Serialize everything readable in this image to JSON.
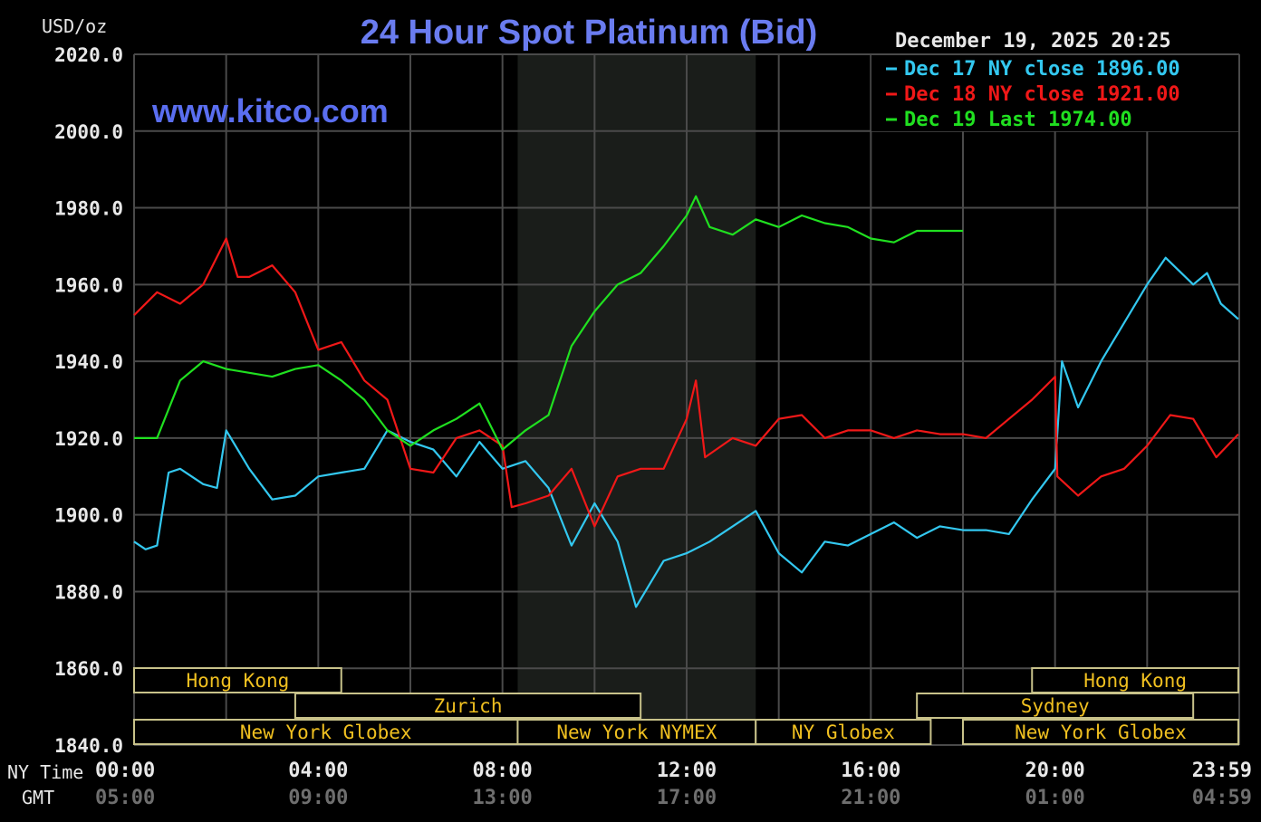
{
  "chart_data": {
    "type": "line",
    "title": "24 Hour Spot Platinum (Bid)",
    "watermark": "www.kitco.com",
    "timestamp": "December 19, 2025 20:25",
    "ylabel": "USD/oz",
    "ylim": [
      1840,
      2020
    ],
    "yticks": [
      "2020.0",
      "2000.0",
      "1980.0",
      "1960.0",
      "1940.0",
      "1920.0",
      "1900.0",
      "1880.0",
      "1860.0",
      "1840.0"
    ],
    "xlim_hours": [
      0,
      24
    ],
    "x_row_label": "NY Time",
    "x2_row_label": "GMT",
    "xticks": [
      {
        "h": 0,
        "ny": "00:00",
        "gmt": "05:00"
      },
      {
        "h": 4,
        "ny": "04:00",
        "gmt": "09:00"
      },
      {
        "h": 8,
        "ny": "08:00",
        "gmt": "13:00"
      },
      {
        "h": 12,
        "ny": "12:00",
        "gmt": "17:00"
      },
      {
        "h": 16,
        "ny": "16:00",
        "gmt": "21:00"
      },
      {
        "h": 20,
        "ny": "20:00",
        "gmt": "01:00"
      },
      {
        "h": 23.98,
        "ny": "23:59",
        "gmt": "04:59"
      }
    ],
    "grid": true,
    "legend_position": "top-right",
    "shaded_period_hours": [
      8.33,
      13.5
    ],
    "colors": {
      "background": "#000000",
      "grid": "#4a4a4a",
      "shade": "#1a1d1a",
      "title": "#6a7cf0",
      "session_border": "#c8c28a",
      "session_text": "#f0c020",
      "axis_text": "#e8e8e8",
      "gmt_text": "#6e6e6e"
    },
    "series": [
      {
        "name": "Dec 17 NY close",
        "value_label": "1896.00",
        "color": "#33c8f0",
        "x": [
          0,
          0.25,
          0.5,
          0.75,
          1,
          1.5,
          1.8,
          2,
          2.5,
          3,
          3.5,
          4,
          4.5,
          5,
          5.5,
          6,
          6.5,
          7,
          7.5,
          8,
          8.5,
          9,
          9.5,
          10,
          10.5,
          10.9,
          11.5,
          12,
          12.5,
          13,
          13.5,
          14,
          14.5,
          15,
          15.5,
          16,
          16.5,
          17,
          17.5,
          18,
          18.5,
          19,
          19.5,
          20,
          20.15,
          20.5,
          21,
          21.5,
          22,
          22.4,
          23,
          23.3,
          23.6,
          23.98
        ],
        "y": [
          1893,
          1891,
          1892,
          1911,
          1912,
          1908,
          1907,
          1922,
          1912,
          1904,
          1905,
          1910,
          1911,
          1912,
          1922,
          1919,
          1917,
          1910,
          1919,
          1912,
          1914,
          1907,
          1892,
          1903,
          1893,
          1876,
          1888,
          1890,
          1893,
          1897,
          1901,
          1890,
          1885,
          1893,
          1892,
          1895,
          1898,
          1894,
          1897,
          1896,
          1896,
          1895,
          1904,
          1912,
          1940,
          1928,
          1940,
          1950,
          1960,
          1967,
          1960,
          1963,
          1955,
          1951
        ]
      },
      {
        "name": "Dec 18 NY close",
        "value_label": "1921.00",
        "color": "#f01818",
        "x": [
          0,
          0.5,
          1,
          1.5,
          2,
          2.25,
          2.5,
          3,
          3.5,
          4,
          4.5,
          5,
          5.5,
          6,
          6.5,
          7,
          7.5,
          8,
          8.2,
          8.5,
          9,
          9.5,
          10,
          10.5,
          11,
          11.5,
          12,
          12.2,
          12.4,
          13,
          13.5,
          14,
          14.5,
          15,
          15.5,
          16,
          16.5,
          17,
          17.5,
          18,
          18.5,
          19,
          19.5,
          20,
          20.05,
          20.5,
          21,
          21.5,
          22,
          22.5,
          23,
          23.5,
          23.98
        ],
        "y": [
          1952,
          1958,
          1955,
          1960,
          1972,
          1962,
          1962,
          1965,
          1958,
          1943,
          1945,
          1935,
          1930,
          1912,
          1911,
          1920,
          1922,
          1918,
          1902,
          1903,
          1905,
          1912,
          1897,
          1910,
          1912,
          1912,
          1925,
          1935,
          1915,
          1920,
          1918,
          1925,
          1926,
          1920,
          1922,
          1922,
          1920,
          1922,
          1921,
          1921,
          1920,
          1925,
          1930,
          1936,
          1910,
          1905,
          1910,
          1912,
          1918,
          1926,
          1925,
          1915,
          1921
        ]
      },
      {
        "name": "Dec 19 Last",
        "value_label": "1974.00",
        "color": "#20e020",
        "x": [
          0,
          0.5,
          1,
          1.5,
          2,
          2.5,
          3,
          3.5,
          4,
          4.5,
          5,
          5.5,
          6,
          6.5,
          7,
          7.5,
          8,
          8.5,
          9,
          9.5,
          10,
          10.5,
          11,
          11.5,
          12,
          12.2,
          12.5,
          13,
          13.5,
          14,
          14.5,
          15,
          15.5,
          16,
          16.5,
          17,
          17.5,
          18
        ],
        "y": [
          1920,
          1920,
          1935,
          1940,
          1938,
          1937,
          1936,
          1938,
          1939,
          1935,
          1930,
          1922,
          1918,
          1922,
          1925,
          1929,
          1917,
          1922,
          1926,
          1944,
          1953,
          1960,
          1963,
          1970,
          1978,
          1983,
          1975,
          1973,
          1977,
          1975,
          1978,
          1976,
          1975,
          1972,
          1971,
          1974,
          1974,
          1974
        ]
      }
    ],
    "sessions": [
      {
        "label": "Hong Kong",
        "row": 0,
        "start": 0,
        "end": 4.5
      },
      {
        "label": "Hong Kong",
        "row": 0,
        "start": 19.5,
        "end": 23.98
      },
      {
        "label": "Zurich",
        "row": 1,
        "start": 3.5,
        "end": 11
      },
      {
        "label": "Sydney",
        "row": 1,
        "start": 17,
        "end": 23
      },
      {
        "label": "New York Globex",
        "row": 2,
        "start": 0,
        "end": 8.33
      },
      {
        "label": "New York NYMEX",
        "row": 2,
        "start": 8.33,
        "end": 13.5
      },
      {
        "label": "NY Globex",
        "row": 2,
        "start": 13.5,
        "end": 17.3
      },
      {
        "label": "New York Globex",
        "row": 2,
        "start": 18,
        "end": 23.98
      }
    ]
  }
}
